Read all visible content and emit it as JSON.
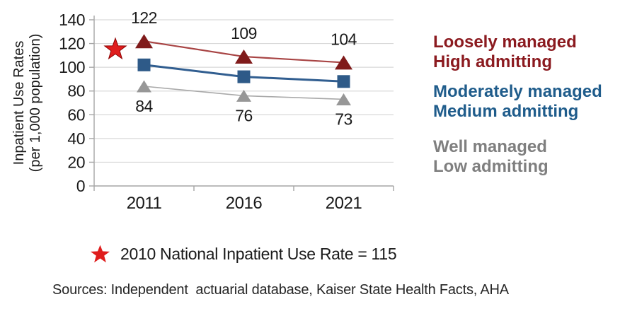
{
  "chart_data": {
    "type": "line",
    "title": "",
    "ylabel": "Inpatient Use Rates (per 1,000 population)",
    "ylabel_lines": [
      "Inpatient Use Rates",
      "(per 1,000 population)"
    ],
    "categories": [
      "2011",
      "2016",
      "2021"
    ],
    "ylim": [
      0,
      140
    ],
    "ytick_interval": 20,
    "grid": "horizontal",
    "legend_position": "right",
    "series": [
      {
        "name": "Loosely managed High admitting",
        "values": [
          122,
          109,
          104
        ],
        "marker": "triangle",
        "marker_color": "#801b1b",
        "line_color": "#a84444",
        "data_labels": "above"
      },
      {
        "name": "Moderately managed Medium admitting",
        "values": [
          102,
          92,
          88
        ],
        "marker": "square",
        "marker_color": "#2e5a88",
        "line_color": "#315e90",
        "data_labels": "none"
      },
      {
        "name": "Well managed Low admitting",
        "values": [
          84,
          76,
          73
        ],
        "marker": "triangle",
        "marker_color": "#979797",
        "line_color": "#a9a9a9",
        "data_labels": "below"
      }
    ],
    "reference_star": {
      "year": "2010",
      "value": 115,
      "color": "#df1d1d"
    },
    "axis_color": "#a6a6a6",
    "grid_color": "#d9d9d9",
    "label_color": "#1a1a1a"
  },
  "legend": {
    "items": [
      {
        "line1": "Loosely managed",
        "line2": "High admitting",
        "color": "#8b1a1f"
      },
      {
        "line1": "Moderately managed",
        "line2": "Medium admitting",
        "color": "#1f5c8b"
      },
      {
        "line1": "Well managed",
        "line2": "Low admitting",
        "color": "#7f7f7f"
      }
    ]
  },
  "annotation": {
    "star_color": "#df1d1d",
    "text": "2010 National Inpatient Use Rate = 115"
  },
  "sources": {
    "text": "Sources: Independent  actuarial database, Kaiser State Health Facts, AHA"
  }
}
